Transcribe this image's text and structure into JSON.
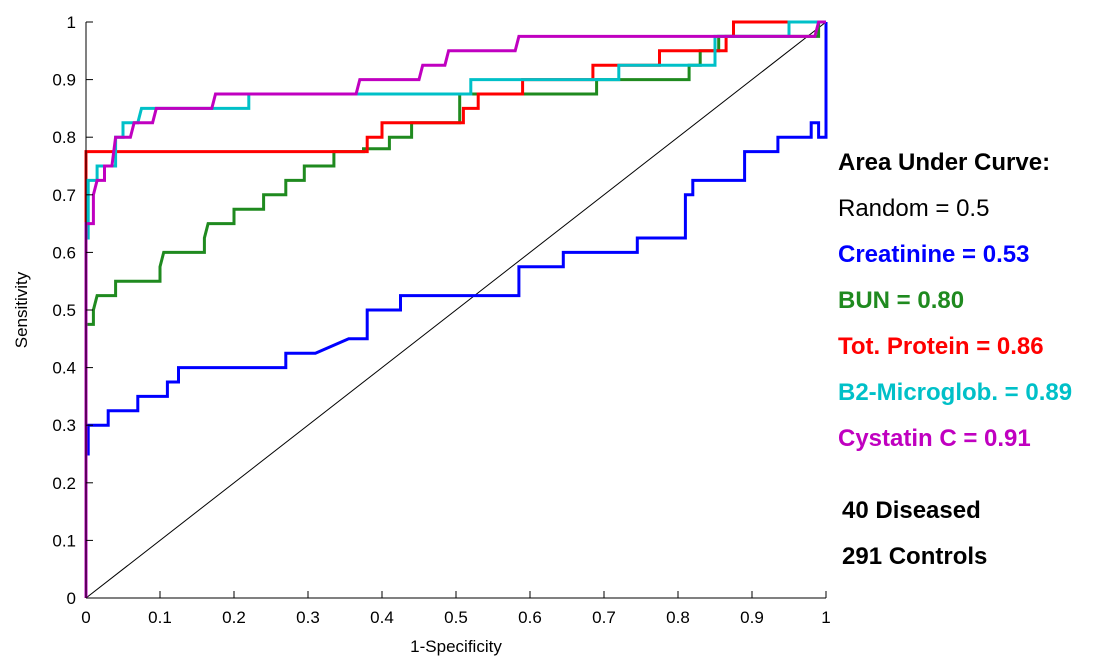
{
  "chart_data": {
    "type": "line",
    "xlabel": "1-Specificity",
    "ylabel": "Sensitivity",
    "xlim": [
      0,
      1
    ],
    "ylim": [
      0,
      1
    ],
    "x_ticks": [
      "0",
      "0.1",
      "0.2",
      "0.3",
      "0.4",
      "0.5",
      "0.6",
      "0.7",
      "0.8",
      "0.9",
      "1"
    ],
    "y_ticks": [
      "0",
      "0.1",
      "0.2",
      "0.3",
      "0.4",
      "0.5",
      "0.6",
      "0.7",
      "0.8",
      "0.9",
      "1"
    ],
    "grid": false,
    "legend_placement": "right, outside plot",
    "reference_line": {
      "x": [
        0,
        1
      ],
      "y": [
        0,
        1
      ],
      "color": "#000000"
    },
    "series": [
      {
        "name": "Creatinine",
        "color": "#0000ff",
        "points": [
          [
            0,
            0
          ],
          [
            0,
            0.25
          ],
          [
            0.003,
            0.25
          ],
          [
            0.003,
            0.3
          ],
          [
            0.03,
            0.3
          ],
          [
            0.03,
            0.325
          ],
          [
            0.07,
            0.325
          ],
          [
            0.07,
            0.35
          ],
          [
            0.11,
            0.35
          ],
          [
            0.11,
            0.375
          ],
          [
            0.125,
            0.375
          ],
          [
            0.125,
            0.4
          ],
          [
            0.27,
            0.4
          ],
          [
            0.27,
            0.425
          ],
          [
            0.31,
            0.425
          ],
          [
            0.31,
            0.425
          ],
          [
            0.355,
            0.45
          ],
          [
            0.38,
            0.45
          ],
          [
            0.38,
            0.5
          ],
          [
            0.425,
            0.5
          ],
          [
            0.425,
            0.525
          ],
          [
            0.585,
            0.525
          ],
          [
            0.585,
            0.575
          ],
          [
            0.645,
            0.575
          ],
          [
            0.645,
            0.6
          ],
          [
            0.745,
            0.6
          ],
          [
            0.745,
            0.625
          ],
          [
            0.81,
            0.625
          ],
          [
            0.81,
            0.7
          ],
          [
            0.82,
            0.7
          ],
          [
            0.82,
            0.725
          ],
          [
            0.89,
            0.725
          ],
          [
            0.89,
            0.775
          ],
          [
            0.935,
            0.775
          ],
          [
            0.935,
            0.8
          ],
          [
            0.98,
            0.8
          ],
          [
            0.98,
            0.825
          ],
          [
            0.99,
            0.825
          ],
          [
            0.99,
            0.8
          ],
          [
            1,
            0.8
          ],
          [
            1,
            1
          ]
        ]
      },
      {
        "name": "BUN",
        "color": "#1f8a1f",
        "points": [
          [
            0,
            0
          ],
          [
            0,
            0.475
          ],
          [
            0.01,
            0.475
          ],
          [
            0.01,
            0.5
          ],
          [
            0.015,
            0.525
          ],
          [
            0.04,
            0.525
          ],
          [
            0.04,
            0.55
          ],
          [
            0.1,
            0.55
          ],
          [
            0.1,
            0.575
          ],
          [
            0.105,
            0.6
          ],
          [
            0.16,
            0.6
          ],
          [
            0.16,
            0.625
          ],
          [
            0.165,
            0.65
          ],
          [
            0.2,
            0.65
          ],
          [
            0.2,
            0.675
          ],
          [
            0.24,
            0.675
          ],
          [
            0.24,
            0.7
          ],
          [
            0.27,
            0.7
          ],
          [
            0.27,
            0.725
          ],
          [
            0.295,
            0.725
          ],
          [
            0.295,
            0.75
          ],
          [
            0.335,
            0.75
          ],
          [
            0.335,
            0.775
          ],
          [
            0.375,
            0.775
          ],
          [
            0.375,
            0.78
          ],
          [
            0.41,
            0.78
          ],
          [
            0.41,
            0.8
          ],
          [
            0.44,
            0.8
          ],
          [
            0.44,
            0.825
          ],
          [
            0.505,
            0.825
          ],
          [
            0.505,
            0.875
          ],
          [
            0.69,
            0.875
          ],
          [
            0.69,
            0.9
          ],
          [
            0.815,
            0.9
          ],
          [
            0.815,
            0.925
          ],
          [
            0.83,
            0.925
          ],
          [
            0.83,
            0.95
          ],
          [
            0.855,
            0.95
          ],
          [
            0.855,
            0.975
          ],
          [
            0.86,
            0.975
          ],
          [
            0.99,
            0.975
          ],
          [
            0.99,
            1
          ],
          [
            1,
            1
          ]
        ]
      },
      {
        "name": "Tot. Protein",
        "color": "#ff0000",
        "points": [
          [
            0,
            0
          ],
          [
            0,
            0.775
          ],
          [
            0.38,
            0.775
          ],
          [
            0.38,
            0.8
          ],
          [
            0.4,
            0.8
          ],
          [
            0.4,
            0.825
          ],
          [
            0.51,
            0.825
          ],
          [
            0.51,
            0.85
          ],
          [
            0.53,
            0.85
          ],
          [
            0.53,
            0.875
          ],
          [
            0.59,
            0.875
          ],
          [
            0.59,
            0.9
          ],
          [
            0.685,
            0.9
          ],
          [
            0.685,
            0.925
          ],
          [
            0.775,
            0.925
          ],
          [
            0.775,
            0.95
          ],
          [
            0.865,
            0.95
          ],
          [
            0.865,
            0.975
          ],
          [
            0.875,
            0.975
          ],
          [
            0.875,
            1
          ],
          [
            1,
            1
          ]
        ]
      },
      {
        "name": "B2-Microglob.",
        "color": "#00c0c8",
        "points": [
          [
            0,
            0
          ],
          [
            0,
            0.625
          ],
          [
            0.003,
            0.625
          ],
          [
            0.003,
            0.725
          ],
          [
            0.015,
            0.725
          ],
          [
            0.015,
            0.75
          ],
          [
            0.04,
            0.75
          ],
          [
            0.04,
            0.8
          ],
          [
            0.05,
            0.8
          ],
          [
            0.05,
            0.825
          ],
          [
            0.07,
            0.825
          ],
          [
            0.075,
            0.85
          ],
          [
            0.17,
            0.85
          ],
          [
            0.22,
            0.85
          ],
          [
            0.22,
            0.875
          ],
          [
            0.36,
            0.875
          ],
          [
            0.52,
            0.875
          ],
          [
            0.52,
            0.9
          ],
          [
            0.72,
            0.9
          ],
          [
            0.72,
            0.925
          ],
          [
            0.85,
            0.925
          ],
          [
            0.85,
            0.975
          ],
          [
            0.95,
            0.975
          ],
          [
            0.95,
            1
          ],
          [
            1,
            1
          ]
        ]
      },
      {
        "name": "Cystatin C",
        "color": "#c000c0",
        "points": [
          [
            0,
            0
          ],
          [
            0,
            0.65
          ],
          [
            0.01,
            0.65
          ],
          [
            0.01,
            0.7
          ],
          [
            0.015,
            0.725
          ],
          [
            0.025,
            0.725
          ],
          [
            0.025,
            0.75
          ],
          [
            0.035,
            0.75
          ],
          [
            0.04,
            0.8
          ],
          [
            0.06,
            0.8
          ],
          [
            0.065,
            0.825
          ],
          [
            0.09,
            0.825
          ],
          [
            0.095,
            0.85
          ],
          [
            0.17,
            0.85
          ],
          [
            0.175,
            0.875
          ],
          [
            0.365,
            0.875
          ],
          [
            0.37,
            0.9
          ],
          [
            0.45,
            0.9
          ],
          [
            0.455,
            0.925
          ],
          [
            0.485,
            0.925
          ],
          [
            0.49,
            0.95
          ],
          [
            0.58,
            0.95
          ],
          [
            0.585,
            0.975
          ],
          [
            0.985,
            0.975
          ],
          [
            0.99,
            1
          ],
          [
            1,
            1
          ]
        ]
      }
    ],
    "annotation": {
      "title": "Area Under Curve:",
      "random": "Random = 0.5",
      "entries": [
        {
          "label": "Creatinine = 0.53",
          "color": "#0000ff"
        },
        {
          "label": "BUN = 0.80",
          "color": "#1f8a1f"
        },
        {
          "label": "Tot. Protein = 0.86",
          "color": "#ff0000"
        },
        {
          "label": "B2-Microglob. = 0.89",
          "color": "#00c0c8"
        },
        {
          "label": "Cystatin C = 0.91",
          "color": "#c000c0"
        }
      ],
      "diseased": "40 Diseased",
      "controls": "291 Controls"
    }
  }
}
